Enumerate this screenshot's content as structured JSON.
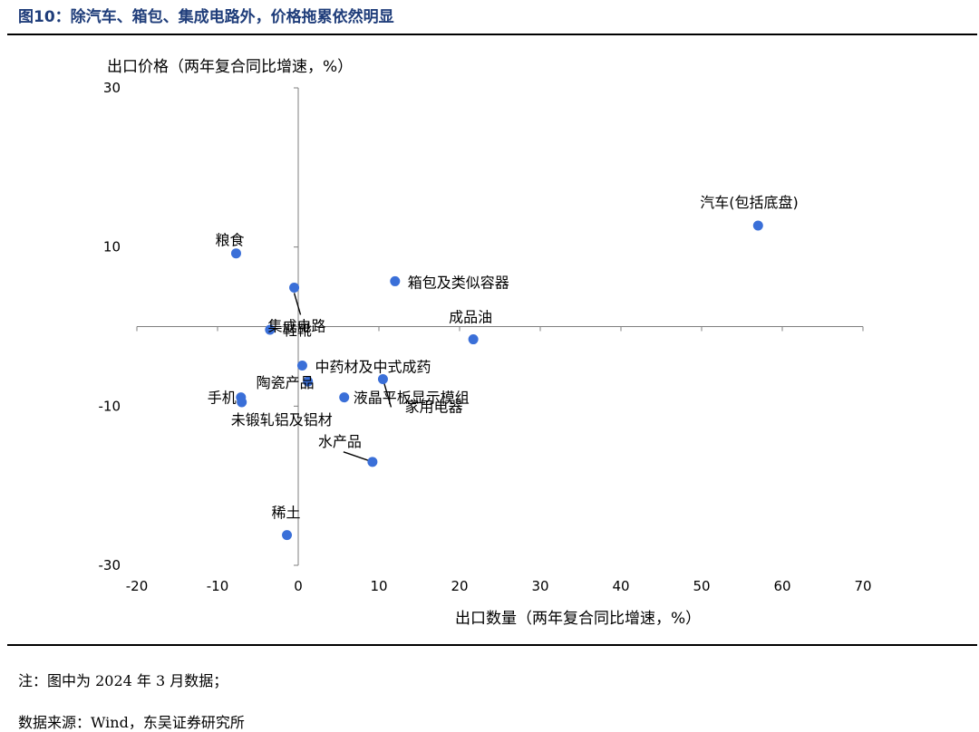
{
  "figure": {
    "title": "图10：除汽车、箱包、集成电路外，价格拖累依然明显",
    "note": "注：图中为 2024 年 3 月数据；",
    "source": "数据来源：Wind，东吴证券研究所"
  },
  "chart_data": {
    "type": "scatter",
    "title": "",
    "xlabel": "出口数量（两年复合同比增速，%）",
    "ylabel": "出口价格（两年复合同比增速，%）",
    "xlim": [
      -20,
      70
    ],
    "ylim": [
      -30,
      30
    ],
    "xticks": [
      "-20",
      "-10",
      "0",
      "10",
      "20",
      "30",
      "40",
      "50",
      "60",
      "70"
    ],
    "yticks": [
      "30",
      "10",
      "-10",
      "-30"
    ],
    "grid": false,
    "marker_color": "#3a6fd8",
    "points": [
      {
        "label": "汽车(包括底盘)",
        "x": 57.0,
        "y": 12.7
      },
      {
        "label": "粮食",
        "x": -7.7,
        "y": 9.2
      },
      {
        "label": "箱包及类似容器",
        "x": 12.0,
        "y": 5.7
      },
      {
        "label": "集成电路",
        "x": -0.5,
        "y": 4.9
      },
      {
        "label": "鞋靴",
        "x": -3.5,
        "y": -0.4
      },
      {
        "label": "成品油",
        "x": 21.7,
        "y": -1.6
      },
      {
        "label": "中药材及中式成药",
        "x": 0.5,
        "y": -4.9
      },
      {
        "label": "陶瓷产品",
        "x": 1.2,
        "y": -6.9
      },
      {
        "label": "家用电器",
        "x": 10.5,
        "y": -6.6
      },
      {
        "label": "液晶平板显示模组",
        "x": 5.7,
        "y": -8.9
      },
      {
        "label": "手机",
        "x": -7.1,
        "y": -8.9
      },
      {
        "label": "未锻轧铝及铝材",
        "x": -7.0,
        "y": -9.5
      },
      {
        "label": "水产品",
        "x": 9.2,
        "y": -17.0
      },
      {
        "label": "稀土",
        "x": -1.4,
        "y": -26.2
      }
    ]
  }
}
